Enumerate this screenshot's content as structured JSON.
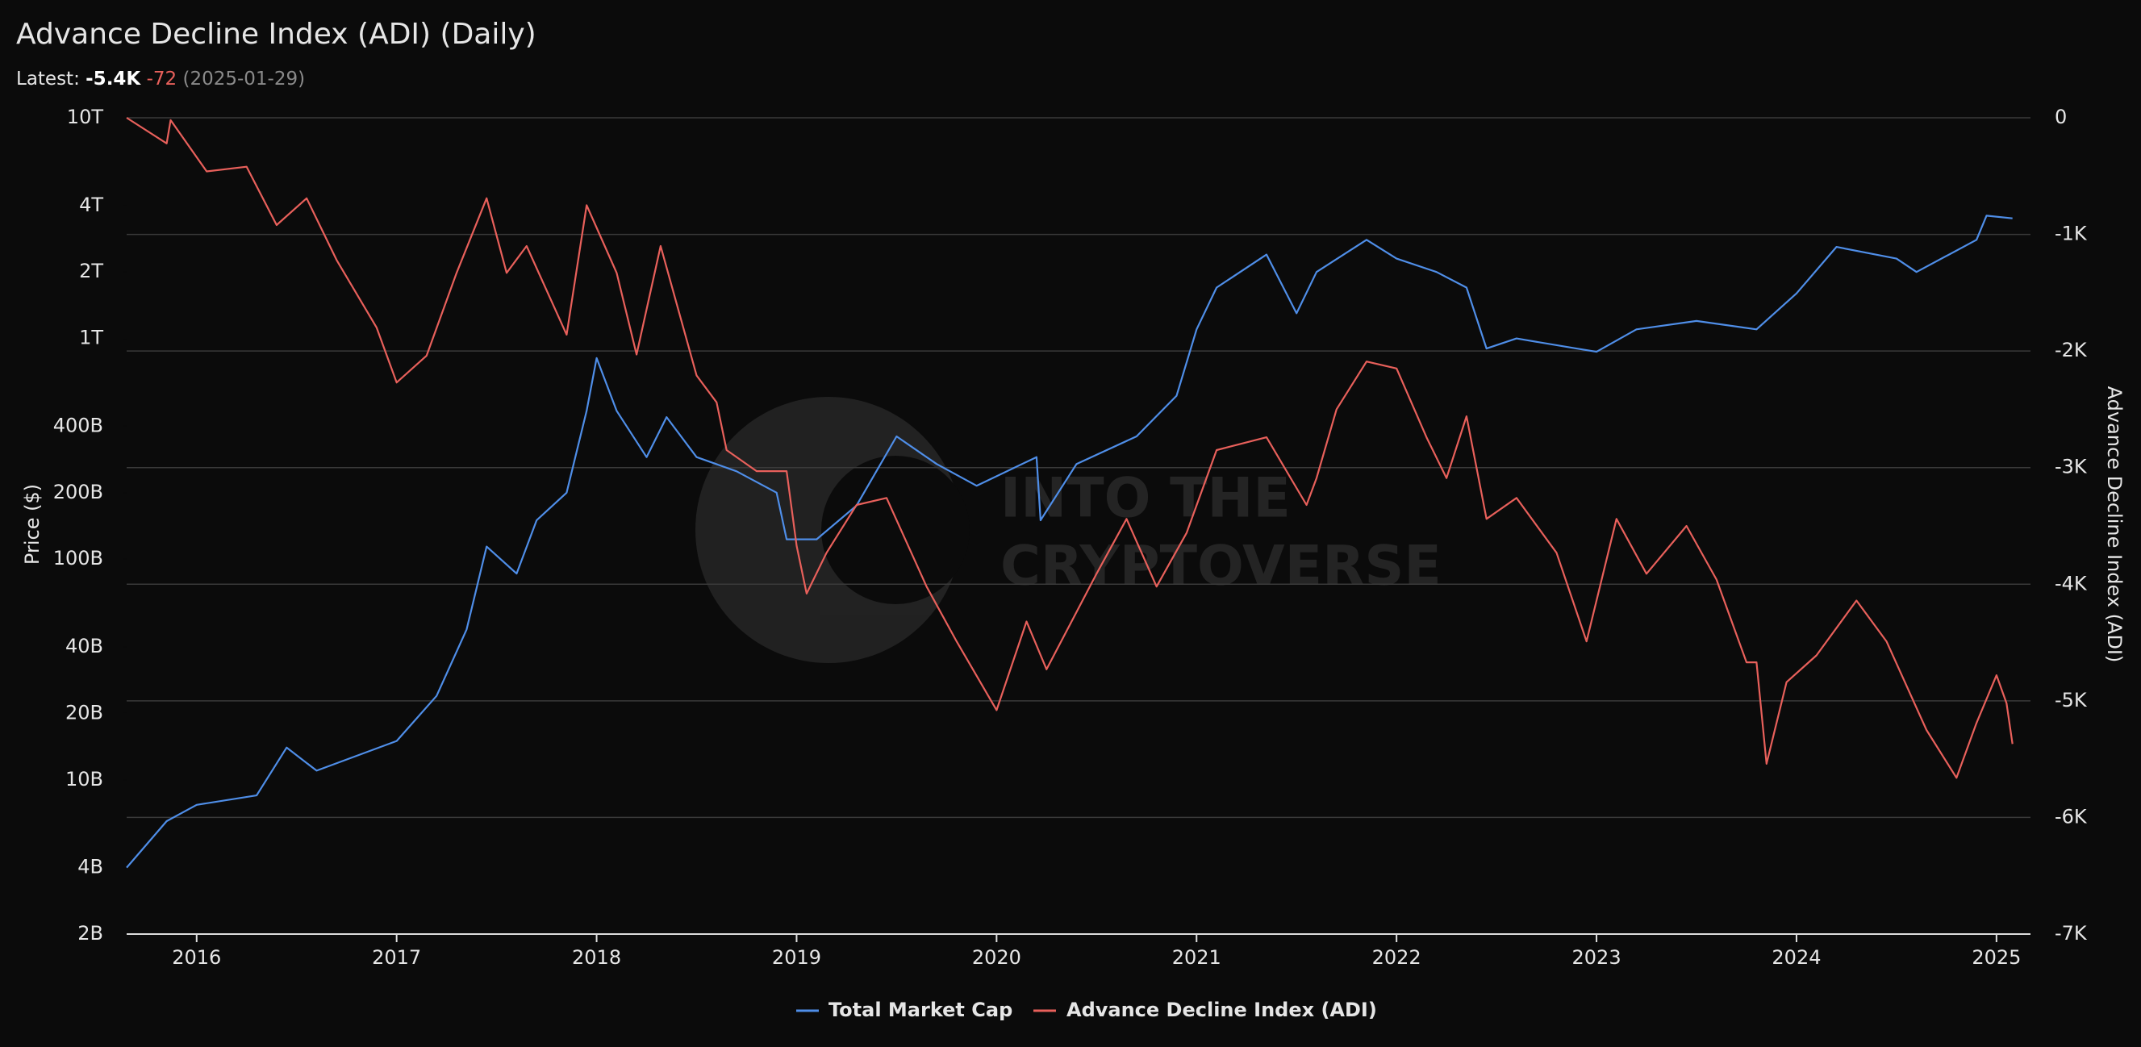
{
  "chart_data": {
    "type": "line",
    "title": "Advance Decline Index (ADI) (Daily)",
    "latest": {
      "label": "Latest:",
      "value": "-5.4K",
      "change": "-72",
      "date": "(2025-01-29)"
    },
    "watermark": [
      "INTO THE",
      "CRYPTOVERSE"
    ],
    "ylabel": "Price ($)",
    "y2label": "Advance Decline Index (ADI)",
    "yscale": "log",
    "grid": true,
    "legend": "bottom",
    "xlim": [
      2015.65,
      2025.17
    ],
    "xticks": [
      2016,
      2017,
      2018,
      2019,
      2020,
      2021,
      2022,
      2023,
      2024,
      2025
    ],
    "ylim": [
      2000000000,
      10000000000000
    ],
    "yticks": [
      {
        "value": 10000000000000,
        "label": "10T"
      },
      {
        "value": 4000000000000,
        "label": "4T"
      },
      {
        "value": 2000000000000,
        "label": "2T"
      },
      {
        "value": 1000000000000,
        "label": "1T"
      },
      {
        "value": 400000000000,
        "label": "400B"
      },
      {
        "value": 200000000000,
        "label": "200B"
      },
      {
        "value": 100000000000,
        "label": "100B"
      },
      {
        "value": 40000000000,
        "label": "40B"
      },
      {
        "value": 20000000000,
        "label": "20B"
      },
      {
        "value": 10000000000,
        "label": "10B"
      },
      {
        "value": 4000000000,
        "label": "4B"
      },
      {
        "value": 2000000000,
        "label": "2B"
      }
    ],
    "y2lim": [
      -7000,
      0
    ],
    "y2ticks": [
      0,
      {
        "value": -1000,
        "label": "-1K"
      },
      {
        "value": -2000,
        "label": "-2K"
      },
      {
        "value": -3000,
        "label": "-3K"
      },
      {
        "value": -4000,
        "label": "-4K"
      },
      {
        "value": -5000,
        "label": "-5K"
      },
      {
        "value": -6000,
        "label": "-6K"
      },
      {
        "value": -7000,
        "label": "-7K"
      }
    ],
    "series": [
      {
        "name": "Total Market Cap",
        "color": "#4f8ee8",
        "axis": "y",
        "x": [
          2015.65,
          2015.85,
          2016.0,
          2016.3,
          2016.45,
          2016.6,
          2017.0,
          2017.2,
          2017.35,
          2017.45,
          2017.6,
          2017.7,
          2017.85,
          2017.95,
          2018.0,
          2018.1,
          2018.25,
          2018.35,
          2018.5,
          2018.7,
          2018.9,
          2018.95,
          2019.1,
          2019.3,
          2019.5,
          2019.7,
          2019.9,
          2020.2,
          2020.22,
          2020.4,
          2020.7,
          2020.9,
          2021.0,
          2021.1,
          2021.35,
          2021.5,
          2021.6,
          2021.85,
          2022.0,
          2022.2,
          2022.35,
          2022.45,
          2022.6,
          2022.9,
          2023.0,
          2023.2,
          2023.5,
          2023.8,
          2024.0,
          2024.2,
          2024.5,
          2024.6,
          2024.9,
          2024.95,
          2025.08
        ],
        "values": [
          4000000000,
          6500000000,
          7700000000,
          8500000000,
          14000000000,
          11000000000,
          15000000000,
          24000000000,
          48000000000,
          114000000000,
          86000000000,
          150000000000,
          200000000000,
          470000000000,
          815000000000,
          470000000000,
          290000000000,
          440000000000,
          290000000000,
          250000000000,
          200000000000,
          123000000000,
          123000000000,
          175000000000,
          360000000000,
          270000000000,
          215000000000,
          290000000000,
          150000000000,
          270000000000,
          360000000000,
          550000000000,
          1100000000000,
          1700000000000,
          2400000000000,
          1300000000000,
          2000000000000,
          2800000000000,
          2300000000000,
          2000000000000,
          1700000000000,
          900000000000,
          1000000000000,
          900000000000,
          870000000000,
          1100000000000,
          1200000000000,
          1100000000000,
          1600000000000,
          2600000000000,
          2300000000000,
          2000000000000,
          2800000000000,
          3600000000000,
          3500000000000
        ]
      },
      {
        "name": "Advance Decline Index (ADI)",
        "color": "#e8605b",
        "axis": "y2",
        "x": [
          2015.65,
          2015.85,
          2015.87,
          2016.05,
          2016.25,
          2016.4,
          2016.55,
          2016.7,
          2016.9,
          2017.0,
          2017.15,
          2017.3,
          2017.45,
          2017.55,
          2017.65,
          2017.85,
          2017.95,
          2018.1,
          2018.2,
          2018.32,
          2018.5,
          2018.6,
          2018.65,
          2018.8,
          2018.95,
          2019.0,
          2019.05,
          2019.15,
          2019.3,
          2019.45,
          2019.65,
          2019.8,
          2020.0,
          2020.15,
          2020.25,
          2020.5,
          2020.65,
          2020.8,
          2020.95,
          2021.1,
          2021.35,
          2021.55,
          2021.6,
          2021.7,
          2021.85,
          2022.0,
          2022.15,
          2022.25,
          2022.35,
          2022.45,
          2022.6,
          2022.8,
          2022.95,
          2023.1,
          2023.25,
          2023.45,
          2023.6,
          2023.75,
          2023.8,
          2023.85,
          2023.95,
          2024.1,
          2024.3,
          2024.45,
          2024.65,
          2024.8,
          2024.9,
          2025.0,
          2025.05,
          2025.08
        ],
        "values": [
          0,
          -220,
          -20,
          -460,
          -420,
          -920,
          -690,
          -1220,
          -1800,
          -2270,
          -2040,
          -1330,
          -690,
          -1330,
          -1100,
          -1860,
          -750,
          -1330,
          -2030,
          -1100,
          -2210,
          -2440,
          -2850,
          -3030,
          -3030,
          -3670,
          -4080,
          -3730,
          -3320,
          -3260,
          -4020,
          -4490,
          -5080,
          -4320,
          -4730,
          -3910,
          -3440,
          -4020,
          -3560,
          -2850,
          -2740,
          -3320,
          -3090,
          -2500,
          -2090,
          -2150,
          -2740,
          -3090,
          -2560,
          -3440,
          -3260,
          -3730,
          -4490,
          -3440,
          -3910,
          -3500,
          -3960,
          -4670,
          -4670,
          -5540,
          -4840,
          -4610,
          -4140,
          -4490,
          -5250,
          -5660,
          -5190,
          -4780,
          -5020,
          -5370
        ]
      }
    ]
  }
}
